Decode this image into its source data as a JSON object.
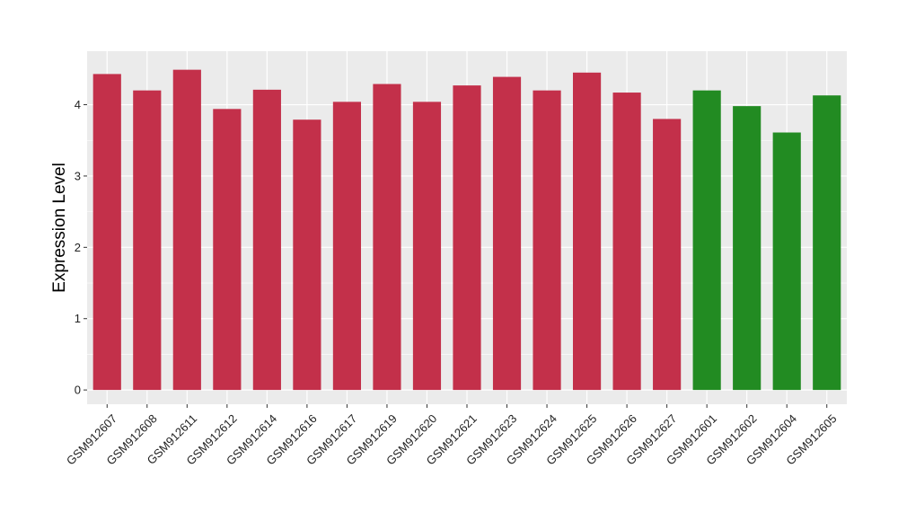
{
  "chart_data": {
    "type": "bar",
    "ylabel": "Expression Level",
    "xlabel": "",
    "ylim": [
      -0.2,
      4.75
    ],
    "yticks": [
      0,
      1,
      2,
      3,
      4
    ],
    "grid": true,
    "categories": [
      "GSM912607",
      "GSM912608",
      "GSM912611",
      "GSM912612",
      "GSM912614",
      "GSM912616",
      "GSM912617",
      "GSM912619",
      "GSM912620",
      "GSM912621",
      "GSM912623",
      "GSM912624",
      "GSM912625",
      "GSM912626",
      "GSM912627",
      "GSM912601",
      "GSM912602",
      "GSM912604",
      "GSM912605"
    ],
    "values": [
      4.43,
      4.2,
      4.49,
      3.94,
      4.21,
      3.79,
      4.04,
      4.29,
      4.04,
      4.27,
      4.39,
      4.2,
      4.45,
      4.17,
      3.8,
      4.2,
      3.98,
      3.61,
      4.13
    ],
    "colors": [
      "#c3304a",
      "#c3304a",
      "#c3304a",
      "#c3304a",
      "#c3304a",
      "#c3304a",
      "#c3304a",
      "#c3304a",
      "#c3304a",
      "#c3304a",
      "#c3304a",
      "#c3304a",
      "#c3304a",
      "#c3304a",
      "#c3304a",
      "#228b22",
      "#228b22",
      "#228b22",
      "#228b22"
    ],
    "panel_background": "#ebebeb",
    "gridline_color": "#ffffff"
  }
}
